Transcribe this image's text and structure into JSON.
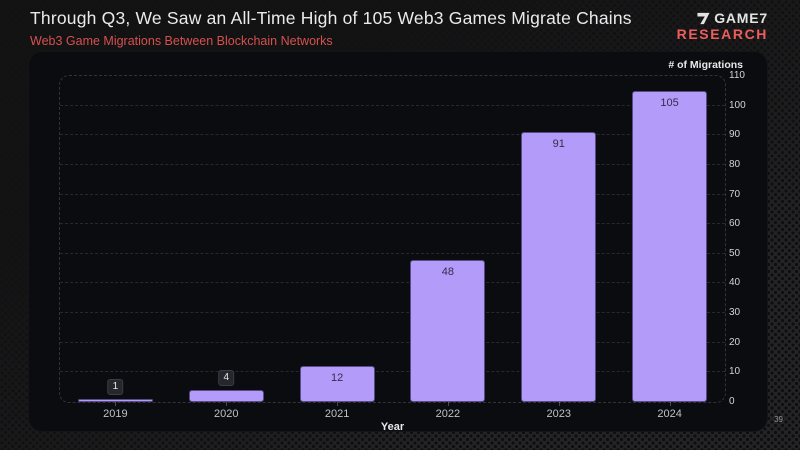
{
  "header": {
    "title": "Through Q3, We Saw an All-Time High of 105 Web3 Games Migrate Chains",
    "subtitle": "Web3 Game Migrations Between Blockchain Networks"
  },
  "logo": {
    "brand": "GAME7",
    "division": "RESEARCH",
    "icon": "game7-seven-mark"
  },
  "page_number": "39",
  "chart_data": {
    "type": "bar",
    "title": "Web3 Game Migrations Between Blockchain Networks",
    "categories": [
      "2019",
      "2020",
      "2021",
      "2022",
      "2023",
      "2024"
    ],
    "values": [
      1,
      4,
      12,
      48,
      91,
      105
    ],
    "value_labels": [
      "1",
      "4",
      "12",
      "48",
      "91",
      "105"
    ],
    "xlabel": "Year",
    "ylabel": "# of Migrations",
    "ylim": [
      0,
      110
    ],
    "ytick_step": 10,
    "grid": "horizontal-dashed",
    "legend": "none",
    "bar_color": "#b39bf9"
  },
  "colors": {
    "background": "#1c1c1d",
    "panel": "#0a0c10",
    "bar_purple": "#b39bf9",
    "accent_red": "#d65050",
    "logo_red": "#ef5d5d",
    "title_text": "#eaeaea",
    "tick_text": "#cfd1d4"
  }
}
